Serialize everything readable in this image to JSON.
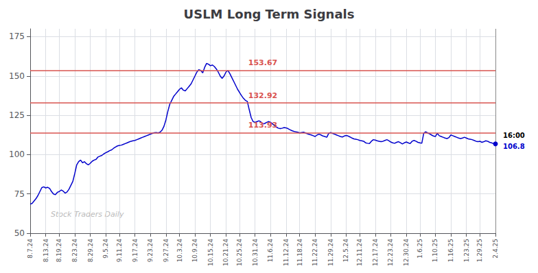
{
  "chart_data": {
    "type": "line",
    "title": "USLM Long Term Signals",
    "watermark": "Stock Traders Daily",
    "color": "#0000cc",
    "grid": true,
    "ylim": [
      50,
      180
    ],
    "yticks": [
      50,
      75,
      100,
      125,
      150,
      175
    ],
    "reference_lines": [
      {
        "value": 113.93,
        "label": "113.93",
        "color": "#d9534f"
      },
      {
        "value": 132.92,
        "label": "132.92",
        "color": "#d9534f"
      },
      {
        "value": 153.67,
        "label": "153.67",
        "color": "#d9534f"
      }
    ],
    "end_label": "16:00",
    "end_value_label": "106.8",
    "categories": [
      "8.7.24",
      null,
      null,
      null,
      null,
      null,
      null,
      null,
      "8.13.24",
      null,
      null,
      null,
      null,
      null,
      null,
      "8.19.24",
      null,
      null,
      null,
      null,
      null,
      null,
      null,
      "8.23.24",
      null,
      null,
      null,
      null,
      null,
      null,
      null,
      "8.29.24",
      null,
      null,
      null,
      null,
      null,
      null,
      null,
      "9.5.24",
      null,
      null,
      null,
      null,
      null,
      null,
      "9.11.24",
      null,
      null,
      null,
      null,
      null,
      null,
      null,
      "9.17.24",
      null,
      null,
      null,
      null,
      null,
      null,
      null,
      "9.23.24",
      null,
      null,
      null,
      null,
      null,
      null,
      null,
      "9.27.24",
      null,
      null,
      null,
      null,
      null,
      null,
      "10.3.24",
      null,
      null,
      null,
      null,
      null,
      null,
      null,
      "10.9.24",
      null,
      null,
      null,
      null,
      null,
      null,
      null,
      "10.15.24",
      null,
      null,
      null,
      null,
      null,
      null,
      null,
      "10.21.24",
      null,
      null,
      null,
      null,
      null,
      null,
      "10.25.24",
      null,
      null,
      null,
      null,
      null,
      null,
      null,
      "10.31.24",
      null,
      null,
      null,
      null,
      null,
      null,
      null,
      "11.6.24",
      null,
      null,
      null,
      null,
      null,
      null,
      null,
      "11.12.24",
      null,
      null,
      null,
      null,
      null,
      null,
      "11.18.24",
      null,
      null,
      null,
      null,
      null,
      null,
      null,
      "11.22.24",
      null,
      null,
      null,
      null,
      null,
      null,
      null,
      "11.29.24",
      null,
      null,
      null,
      null,
      null,
      null,
      null,
      "12.5.24",
      null,
      null,
      null,
      null,
      null,
      null,
      "12.11.24",
      null,
      null,
      null,
      null,
      null,
      null,
      null,
      "12.17.24",
      null,
      null,
      null,
      null,
      null,
      null,
      null,
      "12.23.24",
      null,
      null,
      null,
      null,
      null,
      null,
      null,
      "12.30.24",
      null,
      null,
      null,
      null,
      null,
      null,
      "1.6.25",
      null,
      null,
      null,
      null,
      null,
      null,
      null,
      "1.10.25",
      null,
      null,
      null,
      null,
      null,
      null,
      null,
      "1.16.25",
      null,
      null,
      null,
      null,
      null,
      null,
      null,
      "1.23.25",
      null,
      null,
      null,
      null,
      null,
      null,
      "1.29.25",
      null,
      null,
      null,
      null,
      null,
      null,
      null,
      "2.4.25"
    ],
    "values": [
      68.5,
      69.0,
      70.5,
      72.0,
      74.0,
      76.5,
      79.0,
      79.5,
      78.8,
      79.2,
      78.5,
      76.5,
      75.0,
      74.5,
      76.0,
      76.5,
      77.5,
      76.8,
      75.5,
      76.2,
      78.0,
      80.5,
      83.0,
      88.0,
      93.5,
      95.5,
      96.5,
      94.8,
      95.5,
      94.2,
      93.5,
      94.5,
      95.8,
      96.5,
      97.0,
      98.5,
      99.0,
      99.5,
      100.5,
      101.2,
      101.8,
      102.5,
      103.0,
      104.0,
      104.8,
      105.5,
      105.8,
      106.0,
      106.5,
      107.0,
      107.5,
      108.0,
      108.5,
      108.8,
      109.0,
      109.5,
      110.0,
      110.5,
      111.0,
      111.5,
      112.0,
      112.5,
      113.0,
      113.5,
      113.9,
      114.0,
      113.8,
      114.2,
      115.5,
      118.0,
      122.0,
      127.5,
      132.0,
      134.5,
      137.0,
      138.5,
      140.0,
      141.5,
      142.5,
      141.0,
      140.5,
      142.0,
      143.5,
      145.0,
      147.5,
      150.0,
      152.5,
      154.0,
      153.5,
      152.0,
      155.5,
      158.0,
      157.5,
      156.5,
      157.0,
      156.0,
      154.5,
      152.5,
      150.0,
      148.5,
      150.0,
      152.5,
      153.5,
      151.5,
      149.0,
      146.5,
      144.0,
      141.5,
      139.5,
      137.5,
      135.8,
      134.5,
      133.8,
      128.5,
      123.5,
      121.0,
      120.5,
      121.0,
      121.5,
      120.8,
      119.5,
      119.8,
      120.5,
      121.0,
      120.5,
      119.5,
      118.5,
      117.5,
      116.8,
      116.5,
      116.8,
      117.2,
      117.0,
      116.5,
      115.8,
      115.2,
      114.8,
      114.5,
      114.2,
      113.8,
      114.0,
      114.2,
      113.8,
      113.2,
      112.8,
      112.5,
      112.0,
      111.5,
      112.5,
      113.0,
      112.5,
      111.8,
      111.5,
      111.0,
      113.5,
      114.0,
      113.5,
      113.0,
      112.5,
      112.0,
      111.5,
      111.2,
      111.8,
      112.2,
      111.8,
      111.2,
      110.5,
      110.0,
      109.8,
      109.5,
      109.0,
      108.8,
      108.5,
      107.5,
      107.2,
      107.0,
      108.5,
      109.5,
      109.2,
      108.8,
      108.5,
      108.2,
      108.5,
      109.0,
      109.5,
      108.8,
      108.0,
      107.5,
      107.2,
      107.8,
      108.2,
      107.5,
      106.8,
      107.5,
      108.0,
      107.5,
      107.0,
      108.5,
      109.0,
      108.5,
      107.8,
      107.5,
      107.2,
      113.5,
      114.5,
      113.8,
      113.2,
      112.5,
      111.8,
      111.5,
      113.5,
      112.0,
      111.5,
      111.0,
      110.5,
      110.2,
      110.8,
      112.5,
      112.0,
      111.5,
      111.0,
      110.5,
      110.2,
      110.5,
      111.0,
      110.5,
      110.0,
      109.8,
      109.5,
      109.0,
      108.5,
      108.2,
      108.5,
      107.8,
      108.2,
      108.8,
      108.5,
      107.8,
      107.5,
      107.0,
      106.8
    ]
  }
}
